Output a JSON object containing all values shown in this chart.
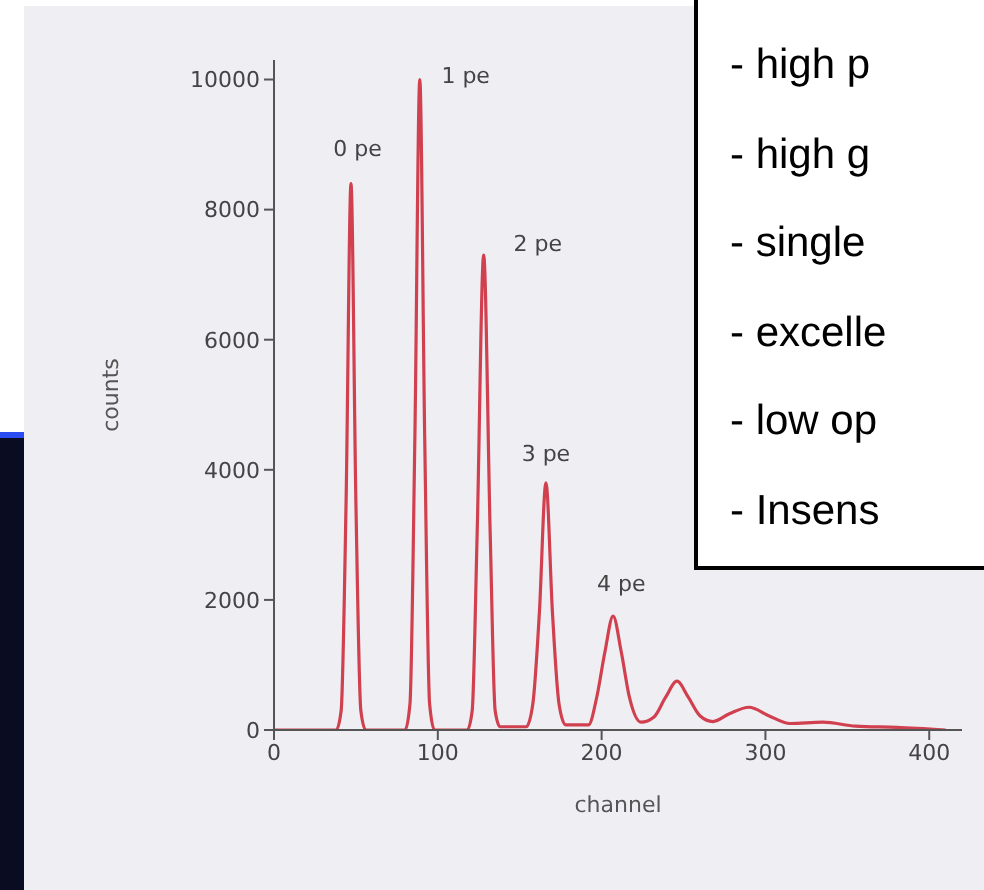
{
  "chart_data": {
    "type": "line",
    "xlabel": "channel",
    "ylabel": "counts",
    "x": [
      0,
      38,
      41,
      44,
      47,
      50,
      53,
      56,
      80,
      83,
      86,
      89,
      92,
      95,
      98,
      118,
      121,
      124,
      128,
      132,
      135,
      138,
      154,
      158,
      162,
      166,
      170,
      174,
      178,
      192,
      197,
      202,
      207,
      212,
      217,
      224,
      232,
      239,
      246,
      253,
      260,
      268,
      278,
      290,
      302,
      315,
      335,
      355,
      380,
      410
    ],
    "series": [
      {
        "color": "#d0404f",
        "values": [
          0,
          0,
          300,
          3500,
          8400,
          3500,
          300,
          0,
          0,
          400,
          4500,
          10000,
          4500,
          400,
          0,
          0,
          300,
          3000,
          7300,
          3000,
          300,
          50,
          50,
          400,
          1800,
          3800,
          1800,
          400,
          80,
          80,
          500,
          1200,
          1750,
          1200,
          500,
          120,
          200,
          500,
          750,
          500,
          220,
          130,
          250,
          350,
          220,
          100,
          120,
          60,
          40,
          0
        ]
      }
    ],
    "xlim": [
      0,
      420
    ],
    "xticks": [
      0,
      100,
      200,
      300,
      400
    ],
    "ylim": [
      0,
      10300
    ],
    "yticks": [
      0,
      2000,
      4000,
      6000,
      8000,
      10000
    ],
    "grid": false,
    "legend": false,
    "marker": "none",
    "line_style": "solid",
    "annotations": [
      {
        "text": "0 pe",
        "x": 47,
        "y": 8400
      },
      {
        "text": "1 pe",
        "x": 89,
        "y": 10000
      },
      {
        "text": "2 pe",
        "x": 128,
        "y": 7300
      },
      {
        "text": "3 pe",
        "x": 166,
        "y": 3800
      },
      {
        "text": "4 pe",
        "x": 207,
        "y": 1750
      },
      "- high p",
      "- high g",
      "- single",
      "- excelle",
      "- low op",
      "- Insens"
    ]
  }
}
